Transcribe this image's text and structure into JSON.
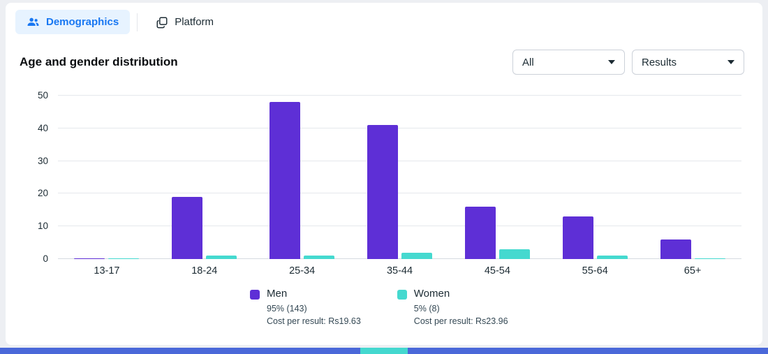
{
  "tabs": [
    {
      "label": "Demographics",
      "active": true
    },
    {
      "label": "Platform",
      "active": false
    }
  ],
  "header": {
    "title": "Age and gender distribution"
  },
  "filters": {
    "breakdown": "All",
    "metric": "Results"
  },
  "colors": {
    "active_tab_blue": "#1877f2",
    "active_tab_bg": "#e7f3ff",
    "men_purple": "#5e2fd6",
    "women_teal": "#45d9cf",
    "bottom_bar_blue": "#4a68d9",
    "bottom_bar_teal": "#44d8cf"
  },
  "chart_data": {
    "type": "bar",
    "title": "Age and gender distribution",
    "categories": [
      "13-17",
      "18-24",
      "25-34",
      "35-44",
      "45-54",
      "55-64",
      "65+"
    ],
    "series": [
      {
        "name": "Men",
        "color": "#5e2fd6",
        "values": [
          0.3,
          19,
          48,
          41,
          16,
          13,
          6
        ],
        "share": "95% (143)",
        "cost_per_result": "Cost per result: Rs19.63"
      },
      {
        "name": "Women",
        "color": "#45d9cf",
        "values": [
          0.2,
          1,
          1,
          2,
          3,
          1,
          0.3
        ],
        "share": "5% (8)",
        "cost_per_result": "Cost per result: Rs23.96"
      }
    ],
    "xlabel": "",
    "ylabel": "",
    "ylim": [
      0,
      50
    ],
    "yticks": [
      0,
      10,
      20,
      30,
      40,
      50
    ],
    "grid": true,
    "legend_position": "bottom"
  }
}
